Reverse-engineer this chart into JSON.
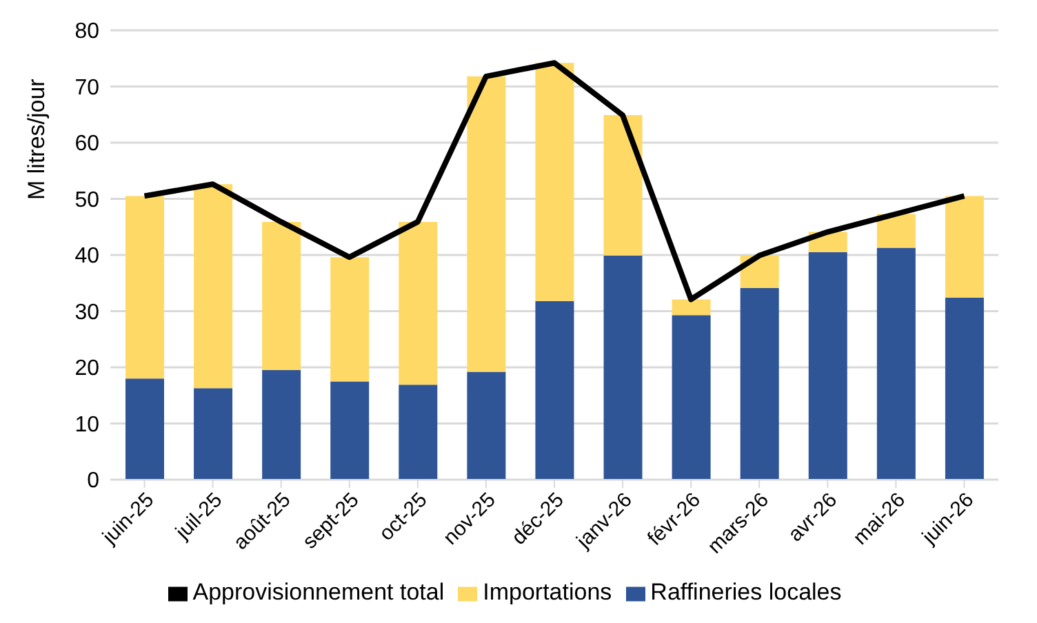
{
  "chart_data": {
    "type": "bar",
    "ylabel": "M litres/jour",
    "categories": [
      "juin-25",
      "juil-25",
      "août-25",
      "sept-25",
      "oct-25",
      "nov-25",
      "déc-25",
      "janv-26",
      "févr-26",
      "mars-26",
      "avr-26",
      "mai-26",
      "juin-26"
    ],
    "stacked": true,
    "ylim": [
      0,
      80
    ],
    "yticks": [
      0,
      10,
      20,
      30,
      40,
      50,
      60,
      70,
      80
    ],
    "grid": "y",
    "legend": "bottom",
    "marker": "none",
    "line_style": "solid",
    "series": [
      {
        "name": "Raffineries locales",
        "color": "#2f5597",
        "values": [
          18.0,
          16.3,
          19.5,
          17.5,
          16.9,
          19.2,
          31.8,
          39.9,
          29.3,
          34.1,
          40.5,
          41.3,
          32.4
        ]
      },
      {
        "name": "Importations",
        "color": "#ffd966",
        "values": [
          32.5,
          36.3,
          26.4,
          22.1,
          29.0,
          52.6,
          42.4,
          25.0,
          2.8,
          5.8,
          3.6,
          6.0,
          18.1
        ]
      },
      {
        "name": "Approvisionnement total",
        "type": "line",
        "color": "#000000",
        "values": [
          50.5,
          52.6,
          45.9,
          39.6,
          45.9,
          71.8,
          74.2,
          64.9,
          32.1,
          39.9,
          44.1,
          47.3,
          50.5
        ]
      }
    ]
  }
}
